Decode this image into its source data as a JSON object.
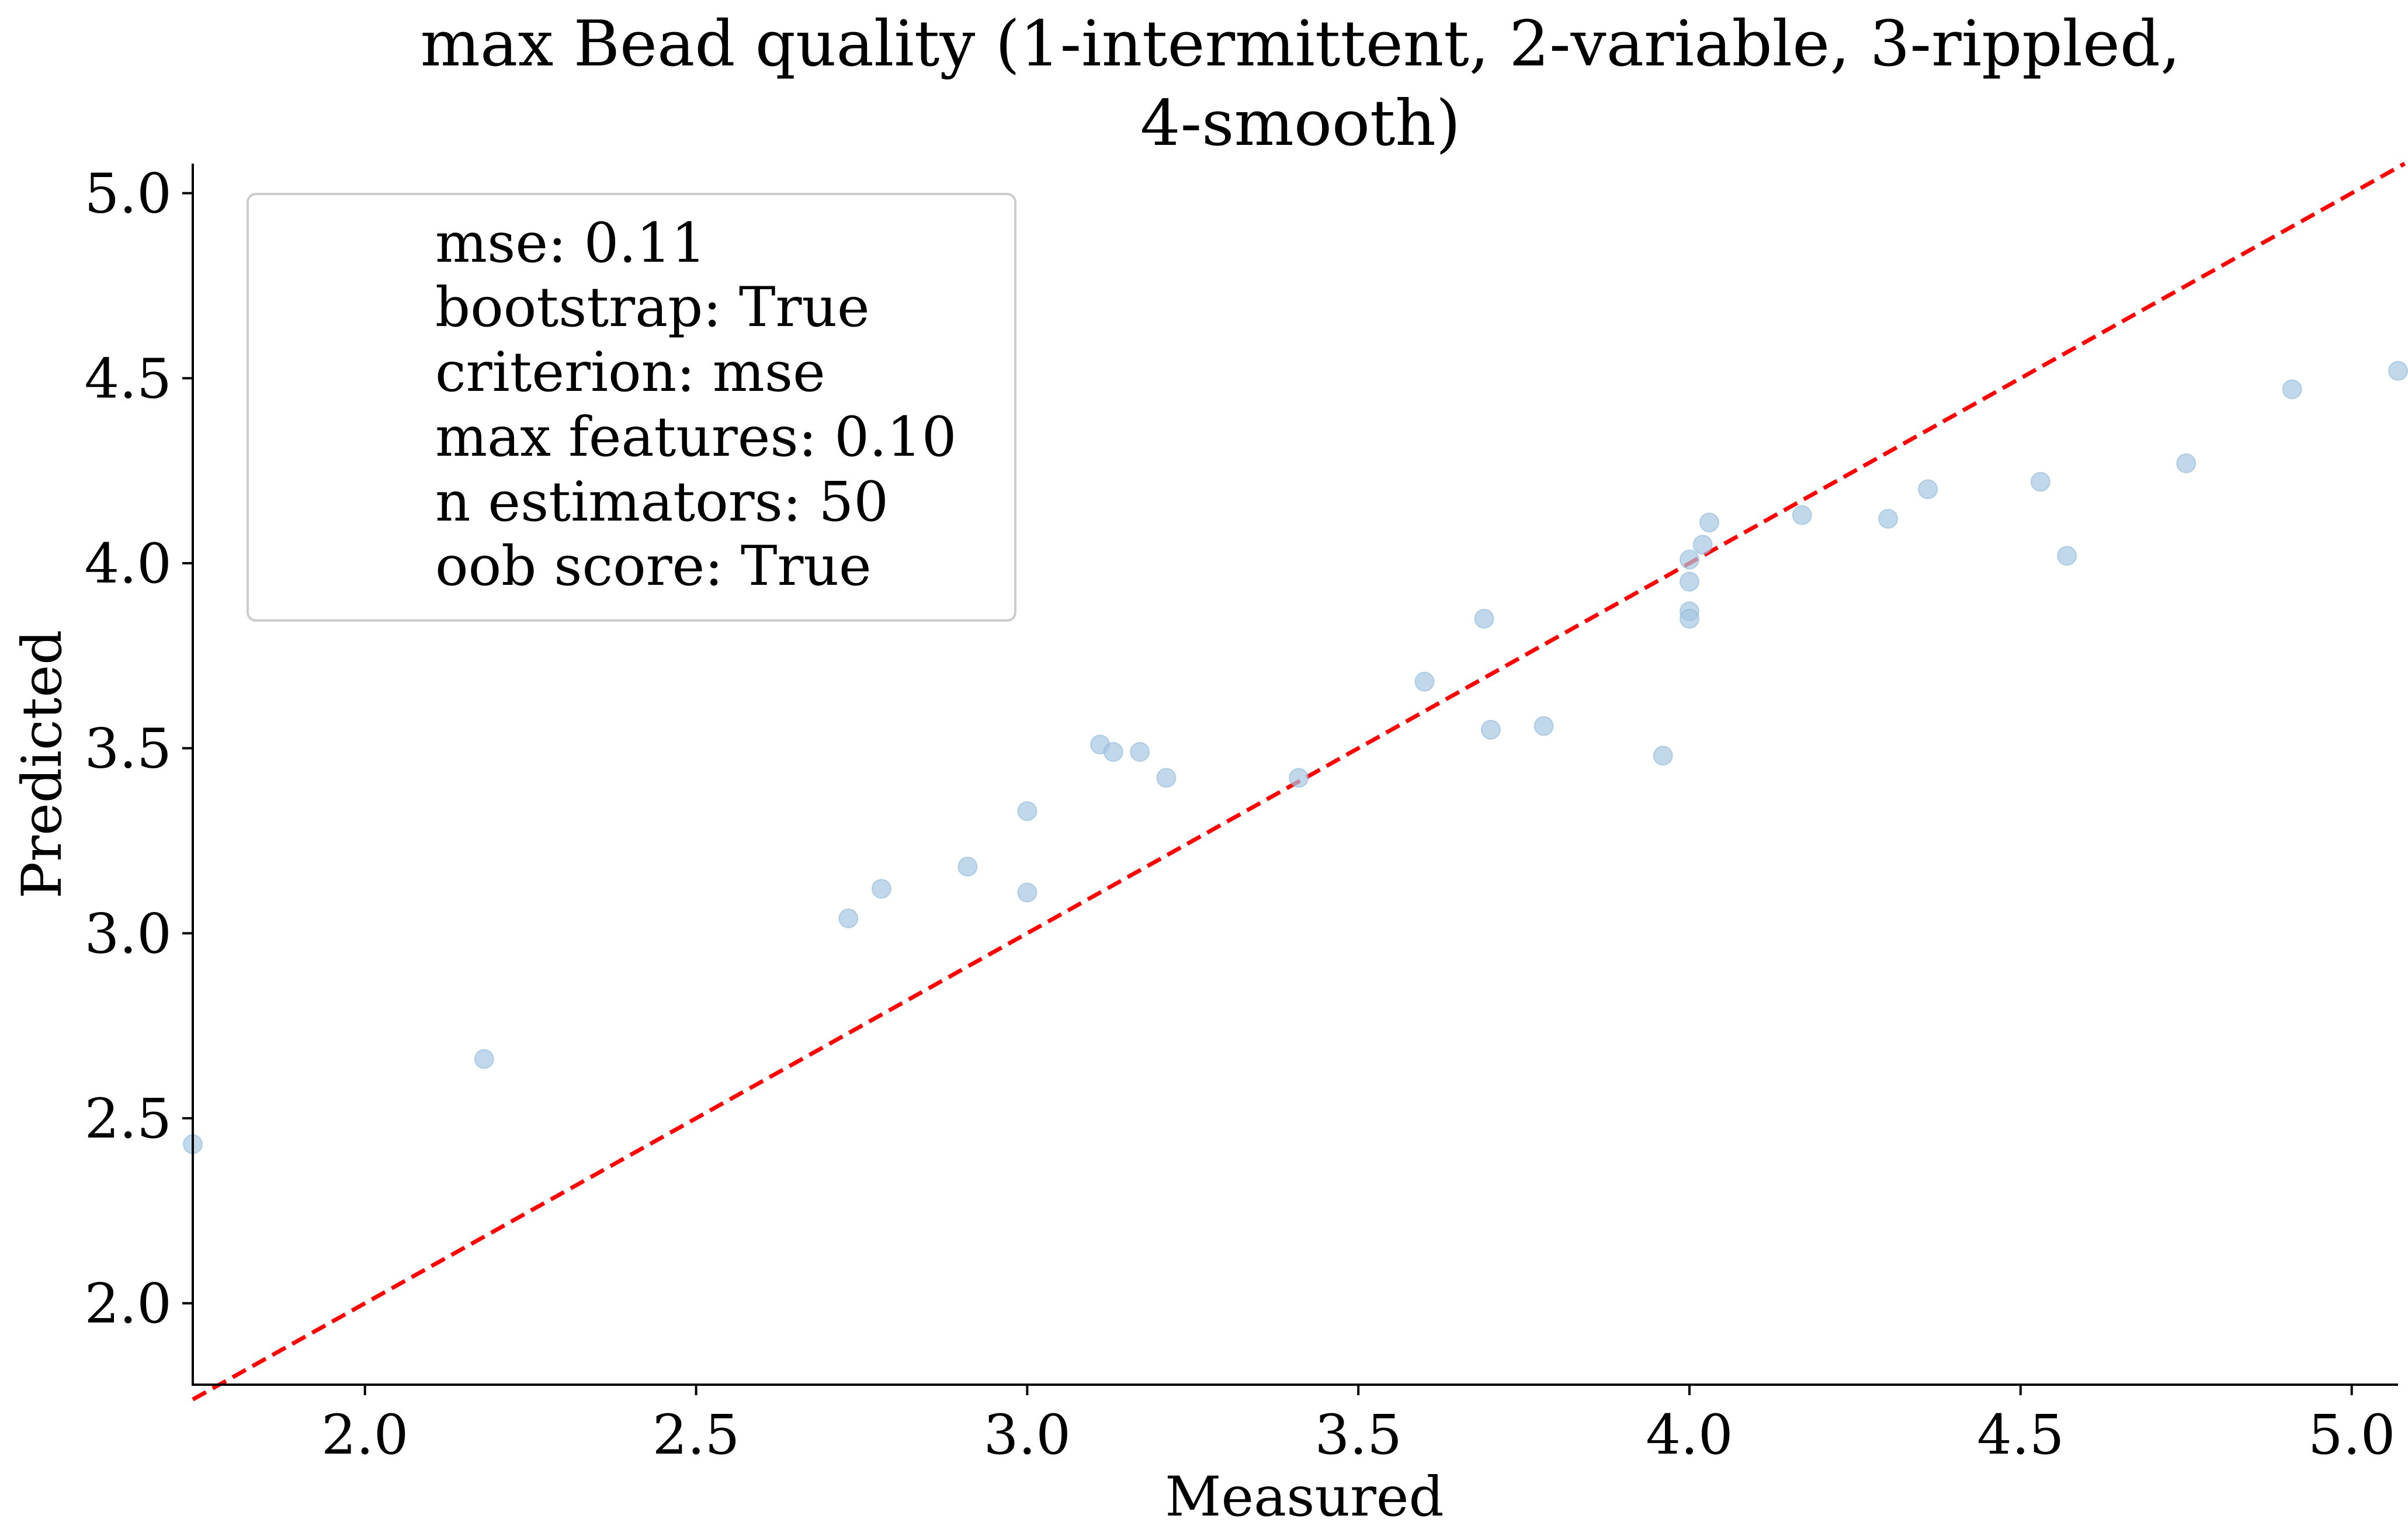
{
  "chart_data": {
    "type": "scatter",
    "title_lines": [
      "max Bead quality (1-intermittent, 2-variable, 3-rippled,",
      "4-smooth)"
    ],
    "xlabel": "Measured",
    "ylabel": "Predicted",
    "xlim": [
      1.74,
      5.07
    ],
    "ylim": [
      1.78,
      5.08
    ],
    "xticks": [
      2.0,
      2.5,
      3.0,
      3.5,
      4.0,
      4.5,
      5.0
    ],
    "yticks": [
      2.0,
      2.5,
      3.0,
      3.5,
      4.0,
      4.5,
      5.0
    ],
    "xtick_labels": [
      "2.0",
      "2.5",
      "3.0",
      "3.5",
      "4.0",
      "4.5",
      "5.0"
    ],
    "ytick_labels": [
      "2.0",
      "2.5",
      "3.0",
      "3.5",
      "4.0",
      "4.5",
      "5.0"
    ],
    "grid": false,
    "legend_position": "top-left",
    "legend_lines": [
      "mse: 0.11",
      "bootstrap: True",
      "criterion: mse",
      "max features: 0.10",
      "n estimators: 50",
      "oob score: True"
    ],
    "point_color": "#a6c8e2",
    "line_color": "#ff0000",
    "reference_line": {
      "style": "dashed",
      "from": [
        1.74,
        1.74
      ],
      "to": [
        5.08,
        5.08
      ]
    },
    "points": [
      {
        "x": 1.74,
        "y": 2.43
      },
      {
        "x": 2.18,
        "y": 2.66
      },
      {
        "x": 2.73,
        "y": 3.04
      },
      {
        "x": 2.78,
        "y": 3.12
      },
      {
        "x": 2.91,
        "y": 3.18
      },
      {
        "x": 3.0,
        "y": 3.33
      },
      {
        "x": 3.0,
        "y": 3.11
      },
      {
        "x": 3.11,
        "y": 3.51
      },
      {
        "x": 3.13,
        "y": 3.49
      },
      {
        "x": 3.17,
        "y": 3.49
      },
      {
        "x": 3.21,
        "y": 3.42
      },
      {
        "x": 3.41,
        "y": 3.42
      },
      {
        "x": 3.6,
        "y": 3.68
      },
      {
        "x": 3.69,
        "y": 3.85
      },
      {
        "x": 3.7,
        "y": 3.55
      },
      {
        "x": 3.78,
        "y": 3.56
      },
      {
        "x": 3.96,
        "y": 3.48
      },
      {
        "x": 4.0,
        "y": 4.01
      },
      {
        "x": 4.0,
        "y": 3.95
      },
      {
        "x": 4.0,
        "y": 3.87
      },
      {
        "x": 4.0,
        "y": 3.85
      },
      {
        "x": 4.02,
        "y": 4.05
      },
      {
        "x": 4.03,
        "y": 4.11
      },
      {
        "x": 4.17,
        "y": 4.13
      },
      {
        "x": 4.3,
        "y": 4.12
      },
      {
        "x": 4.36,
        "y": 4.2
      },
      {
        "x": 4.53,
        "y": 4.22
      },
      {
        "x": 4.57,
        "y": 4.02
      },
      {
        "x": 4.75,
        "y": 4.27
      },
      {
        "x": 4.91,
        "y": 4.47
      },
      {
        "x": 5.07,
        "y": 4.52
      }
    ]
  }
}
